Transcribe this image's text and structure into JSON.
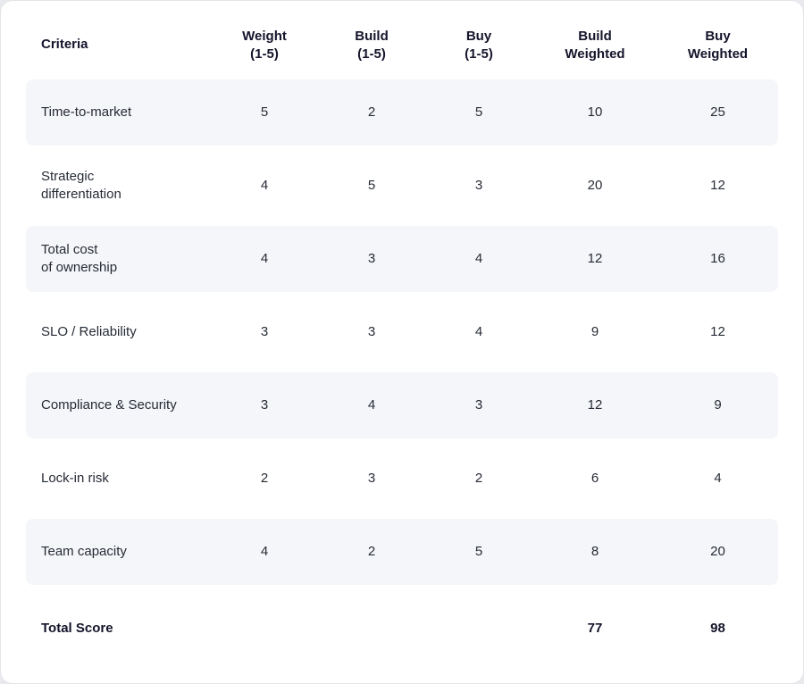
{
  "colors": {
    "card_bg": "#ffffff",
    "page_bg": "#e9eaee",
    "stripe_bg": "#f5f6f9",
    "header_text": "#14142b",
    "body_text": "#262b35"
  },
  "chart_data": {
    "type": "table",
    "title": "",
    "columns": [
      "Criteria",
      "Weight\n(1-5)",
      "Build\n(1-5)",
      "Buy\n(1-5)",
      "Build\nWeighted",
      "Buy\nWeighted"
    ],
    "rows": [
      {
        "criteria": "Time-to-market",
        "weight": 5,
        "build": 2,
        "buy": 5,
        "build_weighted": 10,
        "buy_weighted": 25
      },
      {
        "criteria": "Strategic\ndifferentiation",
        "weight": 4,
        "build": 5,
        "buy": 3,
        "build_weighted": 20,
        "buy_weighted": 12
      },
      {
        "criteria": "Total cost\nof ownership",
        "weight": 4,
        "build": 3,
        "buy": 4,
        "build_weighted": 12,
        "buy_weighted": 16
      },
      {
        "criteria": "SLO / Reliability",
        "weight": 3,
        "build": 3,
        "buy": 4,
        "build_weighted": 9,
        "buy_weighted": 12
      },
      {
        "criteria": "Compliance & Security",
        "weight": 3,
        "build": 4,
        "buy": 3,
        "build_weighted": 12,
        "buy_weighted": 9
      },
      {
        "criteria": "Lock-in risk",
        "weight": 2,
        "build": 3,
        "buy": 2,
        "build_weighted": 6,
        "buy_weighted": 4
      },
      {
        "criteria": "Team capacity",
        "weight": 4,
        "build": 2,
        "buy": 5,
        "build_weighted": 8,
        "buy_weighted": 20
      }
    ],
    "total": {
      "label": "Total Score",
      "build_weighted": 77,
      "buy_weighted": 98
    }
  }
}
